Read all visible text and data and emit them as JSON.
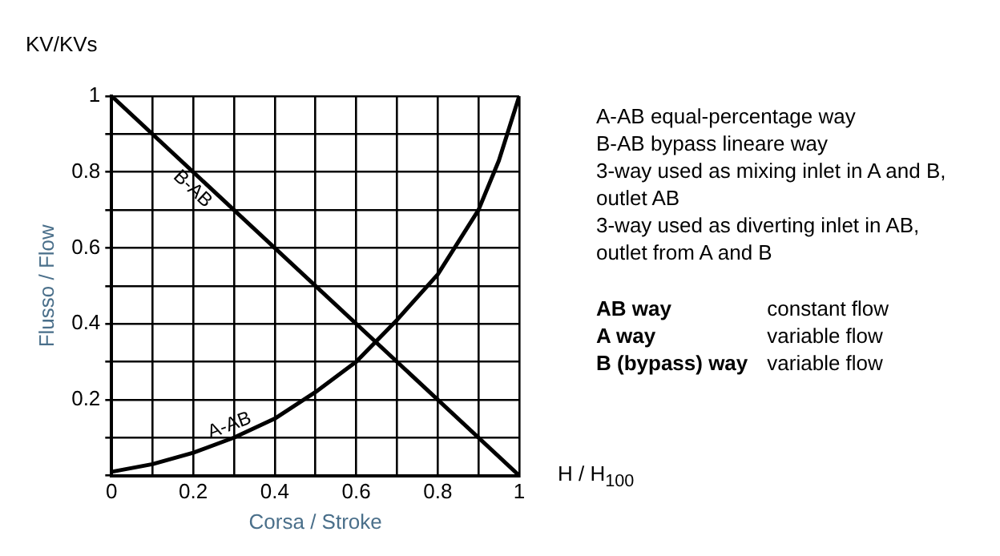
{
  "chart_data": {
    "type": "line",
    "xlabel": "Corsa / Stroke",
    "ylabel": "Flusso / Flow",
    "xlim": [
      0,
      1
    ],
    "ylim": [
      0,
      1
    ],
    "xticks": [
      0,
      {
        "value": 0.1,
        "label": null
      },
      0.2,
      {
        "value": 0.3,
        "label": null
      },
      0.4,
      {
        "value": 0.5,
        "label": null
      },
      0.6,
      {
        "value": 0.7,
        "label": null
      },
      0.8,
      {
        "value": 0.9,
        "label": null
      },
      1
    ],
    "yticks": [
      {
        "value": 0,
        "label": null
      },
      {
        "value": 0.1,
        "label": null
      },
      0.2,
      {
        "value": 0.3,
        "label": null
      },
      0.4,
      {
        "value": 0.5,
        "label": null
      },
      0.6,
      {
        "value": 0.7,
        "label": null
      },
      0.8,
      {
        "value": 0.9,
        "label": null
      },
      1
    ],
    "grid": true,
    "marker": "none",
    "line_style": "solid",
    "series": [
      {
        "name": "A-AB",
        "color": "#000000",
        "x": [
          0,
          0.1,
          0.2,
          0.3,
          0.4,
          0.5,
          0.6,
          0.7,
          0.8,
          0.9,
          0.95,
          1
        ],
        "values": [
          0.01,
          0.03,
          0.06,
          0.1,
          0.15,
          0.22,
          0.3,
          0.41,
          0.53,
          0.7,
          0.83,
          1
        ]
      },
      {
        "name": "B-AB",
        "color": "#000000",
        "x": [
          0,
          1
        ],
        "values": [
          1,
          0
        ]
      }
    ],
    "annotations": [
      "KV/KVs",
      "H / H$_{100}$",
      "A-AB equal-percentage way",
      "B-AB bypass lineare way",
      "3-way used as mixing inlet in A and B, outlet AB",
      "3-way used as diverting inlet in AB, outlet from A and B",
      "AB way",
      "constant flow",
      "A way",
      "variable flow",
      "B (bypass) way",
      "variable flow"
    ]
  }
}
